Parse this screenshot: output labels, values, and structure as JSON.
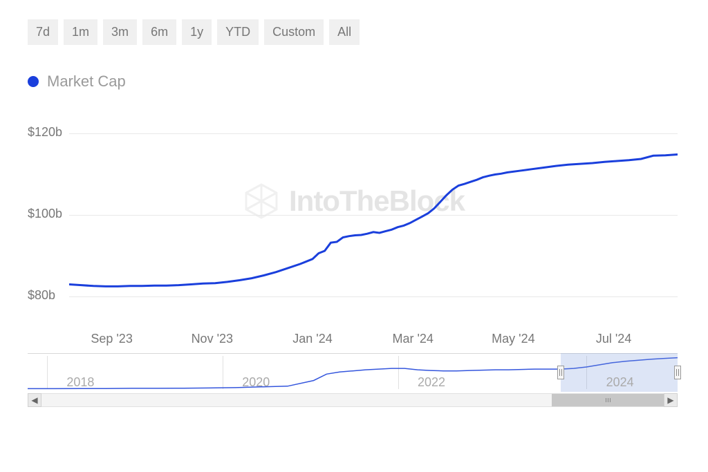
{
  "timerange": {
    "options": [
      "7d",
      "1m",
      "3m",
      "6m",
      "1y",
      "YTD",
      "Custom",
      "All"
    ],
    "button_bg": "#f0f0f0",
    "button_text_color": "#777777",
    "button_fontsize": 18
  },
  "legend": {
    "series_label": "Market Cap",
    "dot_color": "#1a3fdc",
    "label_color": "#9a9a9a",
    "label_fontsize": 22
  },
  "watermark": {
    "text": "IntoTheBlock",
    "color": "#e4e4e4",
    "fontsize": 42
  },
  "main_chart": {
    "type": "line",
    "line_color": "#1a3fdc",
    "line_width": 3,
    "background_color": "#ffffff",
    "grid_color": "#e8e8e8",
    "ylabel_prefix": "$",
    "ylabel_suffix": "b",
    "ylim": [
      78,
      122
    ],
    "yticks": [
      80,
      100,
      120
    ],
    "ytick_labels": [
      "$80b",
      "$100b",
      "$120b"
    ],
    "x_categories": [
      "Sep '23",
      "Nov '23",
      "Jan '24",
      "Mar '24",
      "May '24",
      "Jul '24"
    ],
    "x_positions_pct": [
      7,
      23.5,
      40,
      56.5,
      73,
      89.5
    ],
    "series_values": [
      [
        0,
        83.0
      ],
      [
        2,
        82.8
      ],
      [
        4,
        82.6
      ],
      [
        6,
        82.5
      ],
      [
        8,
        82.5
      ],
      [
        10,
        82.6
      ],
      [
        12,
        82.6
      ],
      [
        14,
        82.7
      ],
      [
        16,
        82.7
      ],
      [
        18,
        82.8
      ],
      [
        20,
        83.0
      ],
      [
        22,
        83.2
      ],
      [
        24,
        83.3
      ],
      [
        26,
        83.6
      ],
      [
        28,
        84.0
      ],
      [
        30,
        84.5
      ],
      [
        32,
        85.2
      ],
      [
        34,
        86.0
      ],
      [
        36,
        87.0
      ],
      [
        38,
        88.0
      ],
      [
        40,
        89.2
      ],
      [
        41,
        90.6
      ],
      [
        42,
        91.2
      ],
      [
        43,
        93.2
      ],
      [
        44,
        93.4
      ],
      [
        45,
        94.5
      ],
      [
        46,
        94.8
      ],
      [
        47,
        95.0
      ],
      [
        48,
        95.1
      ],
      [
        49,
        95.4
      ],
      [
        50,
        95.8
      ],
      [
        51,
        95.6
      ],
      [
        52,
        96.0
      ],
      [
        53,
        96.4
      ],
      [
        54,
        97.0
      ],
      [
        55,
        97.4
      ],
      [
        56,
        98.0
      ],
      [
        57,
        98.8
      ],
      [
        58,
        99.6
      ],
      [
        59,
        100.4
      ],
      [
        60,
        101.6
      ],
      [
        61,
        103.2
      ],
      [
        62,
        104.8
      ],
      [
        63,
        106.2
      ],
      [
        64,
        107.2
      ],
      [
        65,
        107.6
      ],
      [
        66,
        108.1
      ],
      [
        67,
        108.6
      ],
      [
        68,
        109.2
      ],
      [
        69,
        109.6
      ],
      [
        70,
        109.9
      ],
      [
        71,
        110.1
      ],
      [
        72,
        110.4
      ],
      [
        74,
        110.8
      ],
      [
        76,
        111.2
      ],
      [
        78,
        111.6
      ],
      [
        80,
        112.0
      ],
      [
        82,
        112.3
      ],
      [
        84,
        112.5
      ],
      [
        86,
        112.7
      ],
      [
        88,
        113.0
      ],
      [
        90,
        113.2
      ],
      [
        92,
        113.4
      ],
      [
        94,
        113.7
      ],
      [
        96,
        114.5
      ],
      [
        98,
        114.6
      ],
      [
        100,
        114.8
      ]
    ]
  },
  "navigator": {
    "type": "line",
    "line_color": "#3355dd",
    "line_width": 1.5,
    "border_color": "#d8d8d8",
    "year_labels": [
      "2018",
      "2020",
      "2022",
      "2024"
    ],
    "year_positions_pct": [
      6,
      33,
      60,
      89
    ],
    "selection_window_pct": [
      82,
      100
    ],
    "window_bg": "rgba(120,150,220,0.25)",
    "series_values": [
      [
        0,
        5
      ],
      [
        4,
        5
      ],
      [
        8,
        5.2
      ],
      [
        12,
        5.5
      ],
      [
        16,
        6
      ],
      [
        20,
        6
      ],
      [
        24,
        6.5
      ],
      [
        28,
        7
      ],
      [
        32,
        8
      ],
      [
        36,
        10
      ],
      [
        40,
        12
      ],
      [
        44,
        28
      ],
      [
        46,
        46
      ],
      [
        48,
        52
      ],
      [
        50,
        55
      ],
      [
        52,
        58
      ],
      [
        54,
        60
      ],
      [
        56,
        62
      ],
      [
        58,
        62
      ],
      [
        60,
        58
      ],
      [
        62,
        56
      ],
      [
        64,
        55
      ],
      [
        66,
        55
      ],
      [
        68,
        56
      ],
      [
        70,
        57
      ],
      [
        72,
        58
      ],
      [
        74,
        58
      ],
      [
        76,
        59
      ],
      [
        78,
        60
      ],
      [
        80,
        60
      ],
      [
        82,
        60
      ],
      [
        84,
        62
      ],
      [
        86,
        66
      ],
      [
        88,
        72
      ],
      [
        90,
        78
      ],
      [
        92,
        82
      ],
      [
        94,
        85
      ],
      [
        96,
        88
      ],
      [
        98,
        90
      ],
      [
        100,
        92
      ]
    ]
  },
  "scrollbar": {
    "thumb_pct": [
      82,
      100
    ],
    "arrow_left": "◀",
    "arrow_right": "▶"
  }
}
